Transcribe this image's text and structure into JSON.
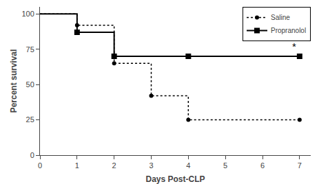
{
  "chart_data": {
    "type": "step",
    "x_label": "Days Post-CLP",
    "y_label": "Percent survival",
    "xlim": [
      0,
      7.3
    ],
    "ylim": [
      0,
      105
    ],
    "xticks": [
      0,
      1,
      2,
      3,
      4,
      5,
      6,
      7
    ],
    "yticks": [
      0,
      25,
      50,
      75,
      100
    ],
    "grid": false,
    "legend": "upper right",
    "series": [
      {
        "name": "Saline",
        "color": "#000000",
        "line_style": "dotted",
        "marker": "circle",
        "x": [
          0,
          1,
          2,
          3,
          4,
          7
        ],
        "values": [
          100,
          92,
          65,
          42,
          25,
          25
        ],
        "marker_x": [
          1,
          2,
          3,
          4,
          7
        ],
        "marker_values": [
          92,
          65,
          42,
          25,
          25
        ]
      },
      {
        "name": "Propranolol",
        "color": "#000000",
        "line_style": "solid",
        "marker": "square",
        "x": [
          0,
          1,
          2,
          7
        ],
        "values": [
          100,
          87,
          70,
          70
        ],
        "marker_x": [
          1,
          2,
          4,
          7
        ],
        "marker_values": [
          87,
          70,
          70,
          70
        ]
      }
    ],
    "annotations": [
      {
        "text": "*",
        "x": 6.85,
        "y": 72,
        "color": "#000000"
      }
    ]
  }
}
